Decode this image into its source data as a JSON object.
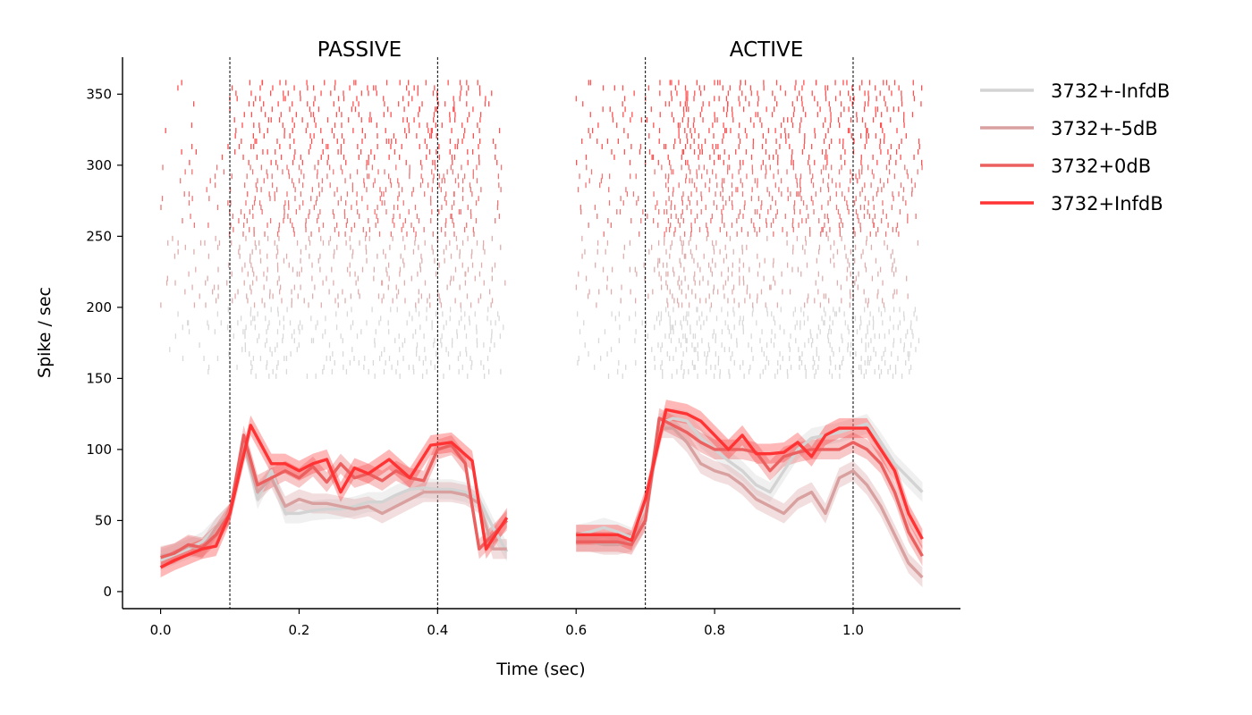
{
  "chart_data": {
    "type": "line",
    "panel_titles": [
      "PASSIVE",
      "ACTIVE"
    ],
    "xlabel": "Time (sec)",
    "ylabel": "Spike / sec",
    "xlim": [
      -0.055,
      1.155
    ],
    "ylim": [
      -12,
      376
    ],
    "xticks": [
      0.0,
      0.2,
      0.4,
      0.6,
      0.8,
      1.0
    ],
    "xtick_labels": [
      "0.0",
      "0.2",
      "0.4",
      "0.6",
      "0.8",
      "1.0"
    ],
    "yticks": [
      0,
      50,
      100,
      150,
      200,
      250,
      300,
      350
    ],
    "ytick_labels": [
      "0",
      "50",
      "100",
      "150",
      "200",
      "250",
      "300",
      "350"
    ],
    "vlines": [
      0.1,
      0.4,
      0.7,
      1.0
    ],
    "legend_position": "outside-top-right",
    "x": [
      [
        0.0,
        0.02,
        0.04,
        0.06,
        0.08,
        0.1,
        0.12,
        0.14,
        0.16,
        0.18,
        0.2,
        0.22,
        0.24,
        0.26,
        0.28,
        0.3,
        0.32,
        0.34,
        0.36,
        0.38,
        0.4,
        0.42,
        0.44,
        0.46,
        0.48,
        0.5
      ],
      [
        0.6,
        0.62,
        0.64,
        0.66,
        0.68,
        0.7,
        0.72,
        0.74,
        0.76,
        0.78,
        0.8,
        0.82,
        0.84,
        0.86,
        0.88,
        0.9,
        0.92,
        0.94,
        0.96,
        0.98,
        1.0,
        1.02,
        1.04,
        1.06,
        1.08,
        1.1
      ]
    ],
    "series": [
      {
        "name": "3732+-InfdB",
        "color": "#d3d3d3",
        "raster_band": [
          150,
          200
        ],
        "passive": [
          22,
          26,
          30,
          35,
          45,
          55,
          105,
          65,
          85,
          55,
          55,
          57,
          58,
          58,
          60,
          63,
          63,
          68,
          72,
          73,
          72,
          72,
          70,
          65,
          45,
          28
        ],
        "active": [
          40,
          42,
          45,
          42,
          38,
          60,
          118,
          122,
          120,
          108,
          100,
          92,
          85,
          75,
          70,
          85,
          100,
          108,
          110,
          112,
          115,
          118,
          105,
          90,
          80,
          70
        ]
      },
      {
        "name": "3732+-5dB",
        "color": "#d9a0a0",
        "raster_band": [
          200,
          250
        ],
        "passive": [
          25,
          27,
          32,
          30,
          45,
          55,
          105,
          70,
          80,
          60,
          65,
          62,
          62,
          60,
          58,
          60,
          55,
          60,
          65,
          70,
          70,
          70,
          68,
          62,
          30,
          30
        ],
        "active": [
          35,
          35,
          33,
          33,
          35,
          50,
          115,
          115,
          105,
          90,
          85,
          82,
          75,
          65,
          60,
          55,
          65,
          70,
          55,
          80,
          85,
          75,
          60,
          40,
          20,
          10
        ],
        "band": 7
      },
      {
        "name": "3732+0dB",
        "color": "#ec5f5f",
        "raster_band": [
          250,
          300
        ],
        "passive": [
          24,
          27,
          33,
          31,
          40,
          55,
          110,
          75,
          80,
          85,
          80,
          88,
          77,
          90,
          80,
          83,
          78,
          85,
          80,
          78,
          100,
          103,
          90,
          30,
          40,
          50
        ],
        "active": [
          35,
          35,
          35,
          35,
          33,
          50,
          122,
          117,
          112,
          105,
          100,
          100,
          100,
          98,
          85,
          95,
          98,
          100,
          100,
          100,
          105,
          100,
          90,
          70,
          42,
          25
        ],
        "band": 7
      },
      {
        "name": "3732+InfdB",
        "color": "#ff3333",
        "raster_band": [
          300,
          360
        ],
        "passive": [
          17,
          22,
          26,
          30,
          32,
          55,
          117,
          90,
          90,
          85,
          90,
          93,
          70,
          87,
          83,
          93,
          80,
          103,
          105,
          92,
          30,
          52
        ],
        "passive_x": [
          0.0,
          0.02,
          0.04,
          0.06,
          0.08,
          0.1,
          0.13,
          0.16,
          0.18,
          0.2,
          0.22,
          0.24,
          0.26,
          0.28,
          0.3,
          0.33,
          0.36,
          0.39,
          0.42,
          0.45,
          0.47,
          0.5
        ],
        "active": [
          40,
          40,
          40,
          40,
          36,
          65,
          128,
          125,
          120,
          110,
          100,
          110,
          97,
          97,
          98,
          105,
          95,
          110,
          115,
          115,
          115,
          100,
          85,
          55,
          37
        ],
        "active_x": [
          0.6,
          0.62,
          0.64,
          0.66,
          0.68,
          0.7,
          0.73,
          0.76,
          0.78,
          0.8,
          0.82,
          0.84,
          0.86,
          0.88,
          0.9,
          0.92,
          0.94,
          0.96,
          0.98,
          1.0,
          1.02,
          1.04,
          1.06,
          1.08,
          1.1
        ],
        "band": 7
      }
    ],
    "raster_time_ranges": [
      [
        0.0,
        0.5
      ],
      [
        0.6,
        1.1
      ]
    ],
    "raster_trials_per_condition": 16
  }
}
